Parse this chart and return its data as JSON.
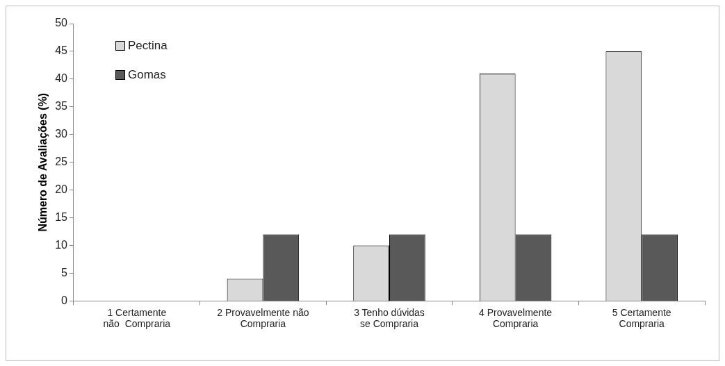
{
  "chart_data": {
    "type": "bar",
    "ylabel": "Número de Avaliações (%)",
    "categories": [
      "1 Certamente\nnão  Compraria",
      "2 Provavelmente não\nCompraria",
      "3 Tenho dúvidas\nse Compraria",
      "4 Provavelmente\nCompraria",
      "5 Certamente\nCompraria"
    ],
    "series": [
      {
        "name": "Pectina",
        "color": "#d9d9d9",
        "values": [
          0,
          4,
          10,
          41,
          45
        ]
      },
      {
        "name": "Gomas",
        "color": "#595959",
        "values": [
          0,
          12,
          12,
          12,
          12
        ]
      }
    ],
    "ylim": [
      0,
      50
    ],
    "yticks": [
      0,
      5,
      10,
      15,
      20,
      25,
      30,
      35,
      40,
      45,
      50
    ],
    "grid": false,
    "legend": "top left"
  }
}
